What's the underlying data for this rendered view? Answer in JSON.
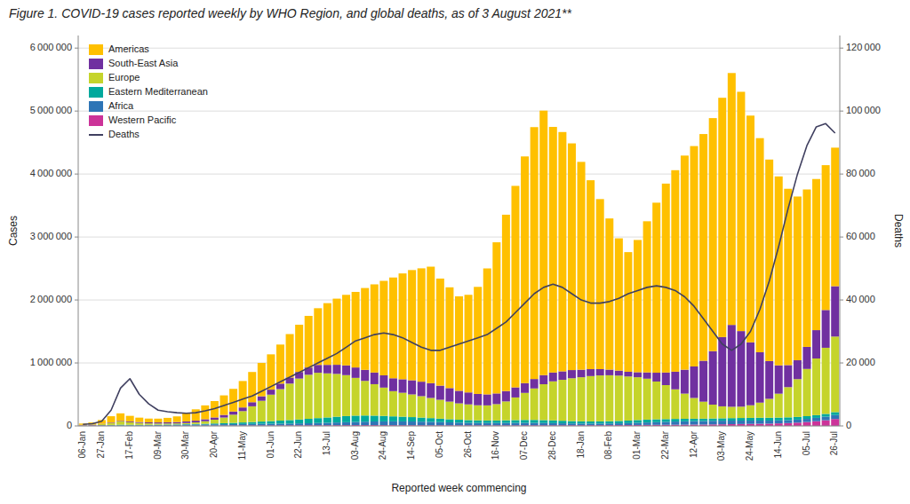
{
  "chart_data": {
    "type": "bar",
    "stacked": true,
    "title": "Figure 1. COVID-19 cases reported weekly by WHO Region, and global deaths, as of 3 August 2021**",
    "x_label": "Reported week commencing",
    "y_label": "Cases",
    "y2_label": "Deaths",
    "grid": true,
    "legend": "upper left",
    "categories": [
      "06-Jan",
      null,
      "27-Jan",
      null,
      null,
      "17-Feb",
      null,
      null,
      "09-Mar",
      null,
      null,
      "30-Mar",
      null,
      null,
      "20-Apr",
      null,
      null,
      "11-May",
      null,
      null,
      "01-Jun",
      null,
      null,
      "22-Jun",
      null,
      null,
      "13-Jul",
      null,
      null,
      "03-Aug",
      null,
      null,
      "24-Aug",
      null,
      null,
      "14-Sep",
      null,
      null,
      "05-Oct",
      null,
      null,
      "26-Oct",
      null,
      null,
      "16-Nov",
      null,
      null,
      "07-Dec",
      null,
      null,
      "28-Dec",
      null,
      null,
      "18-Jan",
      null,
      null,
      "08-Feb",
      null,
      null,
      "01-Mar",
      null,
      null,
      "22-Mar",
      null,
      null,
      "12-Apr",
      null,
      null,
      "03-May",
      null,
      null,
      "24-May",
      null,
      null,
      "14-Jun",
      null,
      null,
      "05-Jul",
      null,
      null,
      "26-Jul"
    ],
    "ylim": [
      0,
      6200000
    ],
    "yticks": [
      0,
      {
        "value": 1000000,
        "label": "1 000 000"
      },
      {
        "value": 2000000,
        "label": "2 000 000"
      },
      {
        "value": 3000000,
        "label": "3 000 000"
      },
      {
        "value": 4000000,
        "label": "4 000 000"
      },
      {
        "value": 5000000,
        "label": "5 000 000"
      },
      {
        "value": 6000000,
        "label": "6 000 000"
      }
    ],
    "y2lim": [
      0,
      124000
    ],
    "y2ticks": [
      0,
      {
        "value": 20000,
        "label": "20 000"
      },
      {
        "value": 40000,
        "label": "40 000"
      },
      {
        "value": 60000,
        "label": "60 000"
      },
      {
        "value": 80000,
        "label": "80 000"
      },
      {
        "value": 100000,
        "label": "100 000"
      },
      {
        "value": 120000,
        "label": "120 000"
      }
    ],
    "series": [
      {
        "name": "Western Pacific",
        "color": "#CC3399",
        "values": [
          8000,
          10000,
          8000,
          6000,
          4000,
          3000,
          2500,
          2500,
          2500,
          3000,
          3500,
          4000,
          4500,
          5000,
          5500,
          6000,
          6500,
          7000,
          7500,
          8000,
          8500,
          9000,
          9500,
          10000,
          10500,
          11000,
          11500,
          12000,
          12500,
          13000,
          13000,
          13000,
          12500,
          12000,
          11500,
          11000,
          10500,
          10000,
          10000,
          10000,
          10000,
          10000,
          10000,
          10000,
          10000,
          10000,
          10000,
          10500,
          11000,
          11000,
          11000,
          11000,
          11000,
          11000,
          11500,
          12000,
          12500,
          13000,
          14000,
          15000,
          16000,
          17000,
          18000,
          19000,
          20000,
          21000,
          22000,
          24000,
          26000,
          28000,
          30000,
          32000,
          34000,
          36000,
          40000,
          45000,
          52000,
          62000,
          75000,
          90000,
          110000
        ]
      },
      {
        "name": "Africa",
        "color": "#2E75B6",
        "values": [
          500,
          800,
          1200,
          2000,
          3500,
          5000,
          7000,
          9000,
          11000,
          13000,
          15000,
          17000,
          18000,
          19000,
          20000,
          21000,
          22000,
          23000,
          24000,
          25000,
          26000,
          27000,
          28000,
          30000,
          32000,
          35000,
          38000,
          42000,
          46000,
          50000,
          54000,
          57000,
          59000,
          60000,
          60000,
          59000,
          57000,
          54000,
          50000,
          46000,
          42000,
          39000,
          37000,
          36000,
          36000,
          37000,
          38000,
          38000,
          37000,
          35000,
          33000,
          30000,
          28000,
          26000,
          25000,
          25000,
          26000,
          28000,
          30000,
          34000,
          38000,
          42000,
          46000,
          50000,
          53000,
          55000,
          56000,
          57000,
          57000,
          56000,
          54000,
          52000,
          50000,
          48000,
          47000,
          47000,
          48000,
          50000,
          53000,
          57000,
          63000
        ]
      },
      {
        "name": "Eastern Mediterranean",
        "color": "#00A99D",
        "values": [
          2000,
          3000,
          5000,
          8000,
          12000,
          10000,
          8000,
          7000,
          6000,
          6000,
          6000,
          7000,
          8000,
          10000,
          13000,
          16000,
          20000,
          25000,
          30000,
          36000,
          42000,
          48000,
          55000,
          62000,
          70000,
          78000,
          85000,
          92000,
          98000,
          100000,
          98000,
          93000,
          87000,
          80000,
          75000,
          70000,
          65000,
          60000,
          55000,
          50000,
          46000,
          43000,
          41000,
          40000,
          40000,
          42000,
          44000,
          46000,
          47000,
          46000,
          44000,
          41000,
          38000,
          36000,
          35000,
          35000,
          36000,
          38000,
          41000,
          44000,
          46000,
          46000,
          44000,
          42000,
          40000,
          38000,
          37000,
          37000,
          38000,
          40000,
          42000,
          44000,
          46000,
          46000,
          45000,
          44000,
          43000,
          43000,
          43000,
          44000,
          46000
        ]
      },
      {
        "name": "Europe",
        "color": "#C5D42B",
        "values": [
          5000,
          8000,
          15000,
          30000,
          50000,
          40000,
          30000,
          22000,
          18000,
          16000,
          15000,
          18000,
          25000,
          40000,
          60000,
          90000,
          130000,
          180000,
          250000,
          330000,
          420000,
          500000,
          580000,
          650000,
          700000,
          720000,
          700000,
          680000,
          650000,
          600000,
          550000,
          500000,
          450000,
          400000,
          380000,
          360000,
          340000,
          320000,
          300000,
          280000,
          260000,
          250000,
          240000,
          240000,
          260000,
          300000,
          360000,
          430000,
          500000,
          570000,
          620000,
          650000,
          680000,
          700000,
          720000,
          730000,
          730000,
          720000,
          700000,
          680000,
          650000,
          600000,
          540000,
          470000,
          400000,
          330000,
          270000,
          220000,
          190000,
          180000,
          180000,
          200000,
          240000,
          300000,
          380000,
          480000,
          600000,
          750000,
          900000,
          1050000,
          1200000
        ]
      },
      {
        "name": "South-East Asia",
        "color": "#7030A0",
        "values": [
          2000,
          3000,
          5000,
          8000,
          10000,
          12000,
          14000,
          16000,
          18000,
          20000,
          22000,
          25000,
          28000,
          32000,
          36000,
          42000,
          50000,
          58000,
          65000,
          72000,
          80000,
          88000,
          96000,
          105000,
          115000,
          125000,
          135000,
          145000,
          155000,
          165000,
          175000,
          185000,
          195000,
          205000,
          215000,
          225000,
          230000,
          235000,
          225000,
          215000,
          200000,
          190000,
          180000,
          175000,
          170000,
          165000,
          160000,
          155000,
          150000,
          145000,
          140000,
          135000,
          130000,
          120000,
          110000,
          100000,
          90000,
          80000,
          75000,
          80000,
          100000,
          140000,
          200000,
          280000,
          380000,
          500000,
          650000,
          850000,
          1100000,
          1300000,
          1200000,
          1000000,
          800000,
          600000,
          450000,
          350000,
          300000,
          350000,
          450000,
          600000,
          800000
        ]
      },
      {
        "name": "Americas",
        "color": "#FFC000",
        "values": [
          20000,
          30000,
          60000,
          100000,
          120000,
          90000,
          70000,
          60000,
          60000,
          70000,
          90000,
          130000,
          180000,
          220000,
          260000,
          310000,
          360000,
          420000,
          480000,
          530000,
          560000,
          620000,
          690000,
          750000,
          820000,
          900000,
          980000,
          1050000,
          1120000,
          1200000,
          1300000,
          1400000,
          1500000,
          1600000,
          1680000,
          1750000,
          1800000,
          1850000,
          1700000,
          1600000,
          1500000,
          1550000,
          1700000,
          2000000,
          2400000,
          2800000,
          3200000,
          3600000,
          4000000,
          4200000,
          3900000,
          3800000,
          3600000,
          3300000,
          3000000,
          2700000,
          2400000,
          2100000,
          1900000,
          2100000,
          2400000,
          2700000,
          3000000,
          3200000,
          3400000,
          3500000,
          3600000,
          3700000,
          3800000,
          4000000,
          3800000,
          3600000,
          3400000,
          3200000,
          3000000,
          2800000,
          2600000,
          2500000,
          2400000,
          2300000,
          2200000
        ]
      },
      {
        "name": "Deaths",
        "type": "line",
        "axis": "y2",
        "color": "#404060",
        "values": [
          500,
          700,
          1500,
          5000,
          12000,
          15000,
          10000,
          7000,
          5000,
          4500,
          4200,
          4000,
          4200,
          4800,
          5500,
          6500,
          7500,
          8500,
          9500,
          11000,
          12500,
          14000,
          15500,
          17000,
          18500,
          20000,
          21500,
          23000,
          25000,
          27000,
          28000,
          29000,
          29500,
          29000,
          28000,
          26500,
          25000,
          24000,
          24000,
          25000,
          26000,
          27000,
          28000,
          29000,
          31000,
          33000,
          36000,
          39000,
          42000,
          44000,
          45000,
          44000,
          42000,
          40000,
          39000,
          39000,
          39500,
          40500,
          42000,
          43000,
          44000,
          44500,
          44000,
          43000,
          41000,
          38000,
          34000,
          30000,
          26000,
          24000,
          26000,
          30000,
          37000,
          46000,
          57000,
          69000,
          80000,
          89000,
          95000,
          96000,
          93000
        ]
      }
    ]
  }
}
